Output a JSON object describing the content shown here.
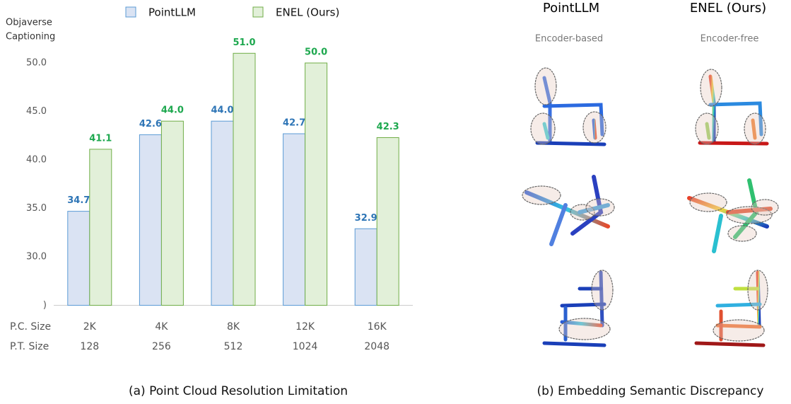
{
  "chart_data": {
    "type": "bar",
    "ylabel": [
      "Objaverse",
      "Captioning"
    ],
    "categories": [
      "2K",
      "4K",
      "8K",
      "12K",
      "16K"
    ],
    "row_labels": [
      "P.C. Size",
      "P.T. Size"
    ],
    "secondary_categories": [
      "128",
      "256",
      "512",
      "1024",
      "2048"
    ],
    "series": [
      {
        "name": "PointLLM",
        "color": "#dae3f3",
        "edge_color": "#5b9bd5",
        "label_color": "#2e75b6",
        "values": [
          34.7,
          42.6,
          44.0,
          42.7,
          32.9
        ],
        "value_labels": [
          "34.7",
          "42.6",
          "44.0",
          "42.7",
          "32.9"
        ]
      },
      {
        "name": "ENEL (Ours)",
        "color": "#e2f0d9",
        "edge_color": "#70ad47",
        "label_color": "#1ea84f",
        "values": [
          41.1,
          44.0,
          51.0,
          50.0,
          42.3
        ],
        "value_labels": [
          "41.1",
          "44.0",
          "51.0",
          "50.0",
          "42.3"
        ]
      }
    ],
    "ylim": [
      25,
      53
    ],
    "yticks": [
      {
        "value": 25,
        "label": ")"
      },
      {
        "value": 30,
        "label": "30.0"
      },
      {
        "value": 35,
        "label": "35.0"
      },
      {
        "value": 40,
        "label": "40.0"
      },
      {
        "value": 45,
        "label": "45.0"
      },
      {
        "value": 50,
        "label": "50.0"
      }
    ],
    "grid": false,
    "caption": "(a) Point Cloud Resolution Limitation"
  },
  "panel_b": {
    "columns": [
      {
        "title": "PointLLM",
        "subtitle": "Encoder-based"
      },
      {
        "title": "ENEL (Ours)",
        "subtitle": "Encoder-free"
      }
    ],
    "caption": "(b) Embedding Semantic Discrepancy"
  }
}
